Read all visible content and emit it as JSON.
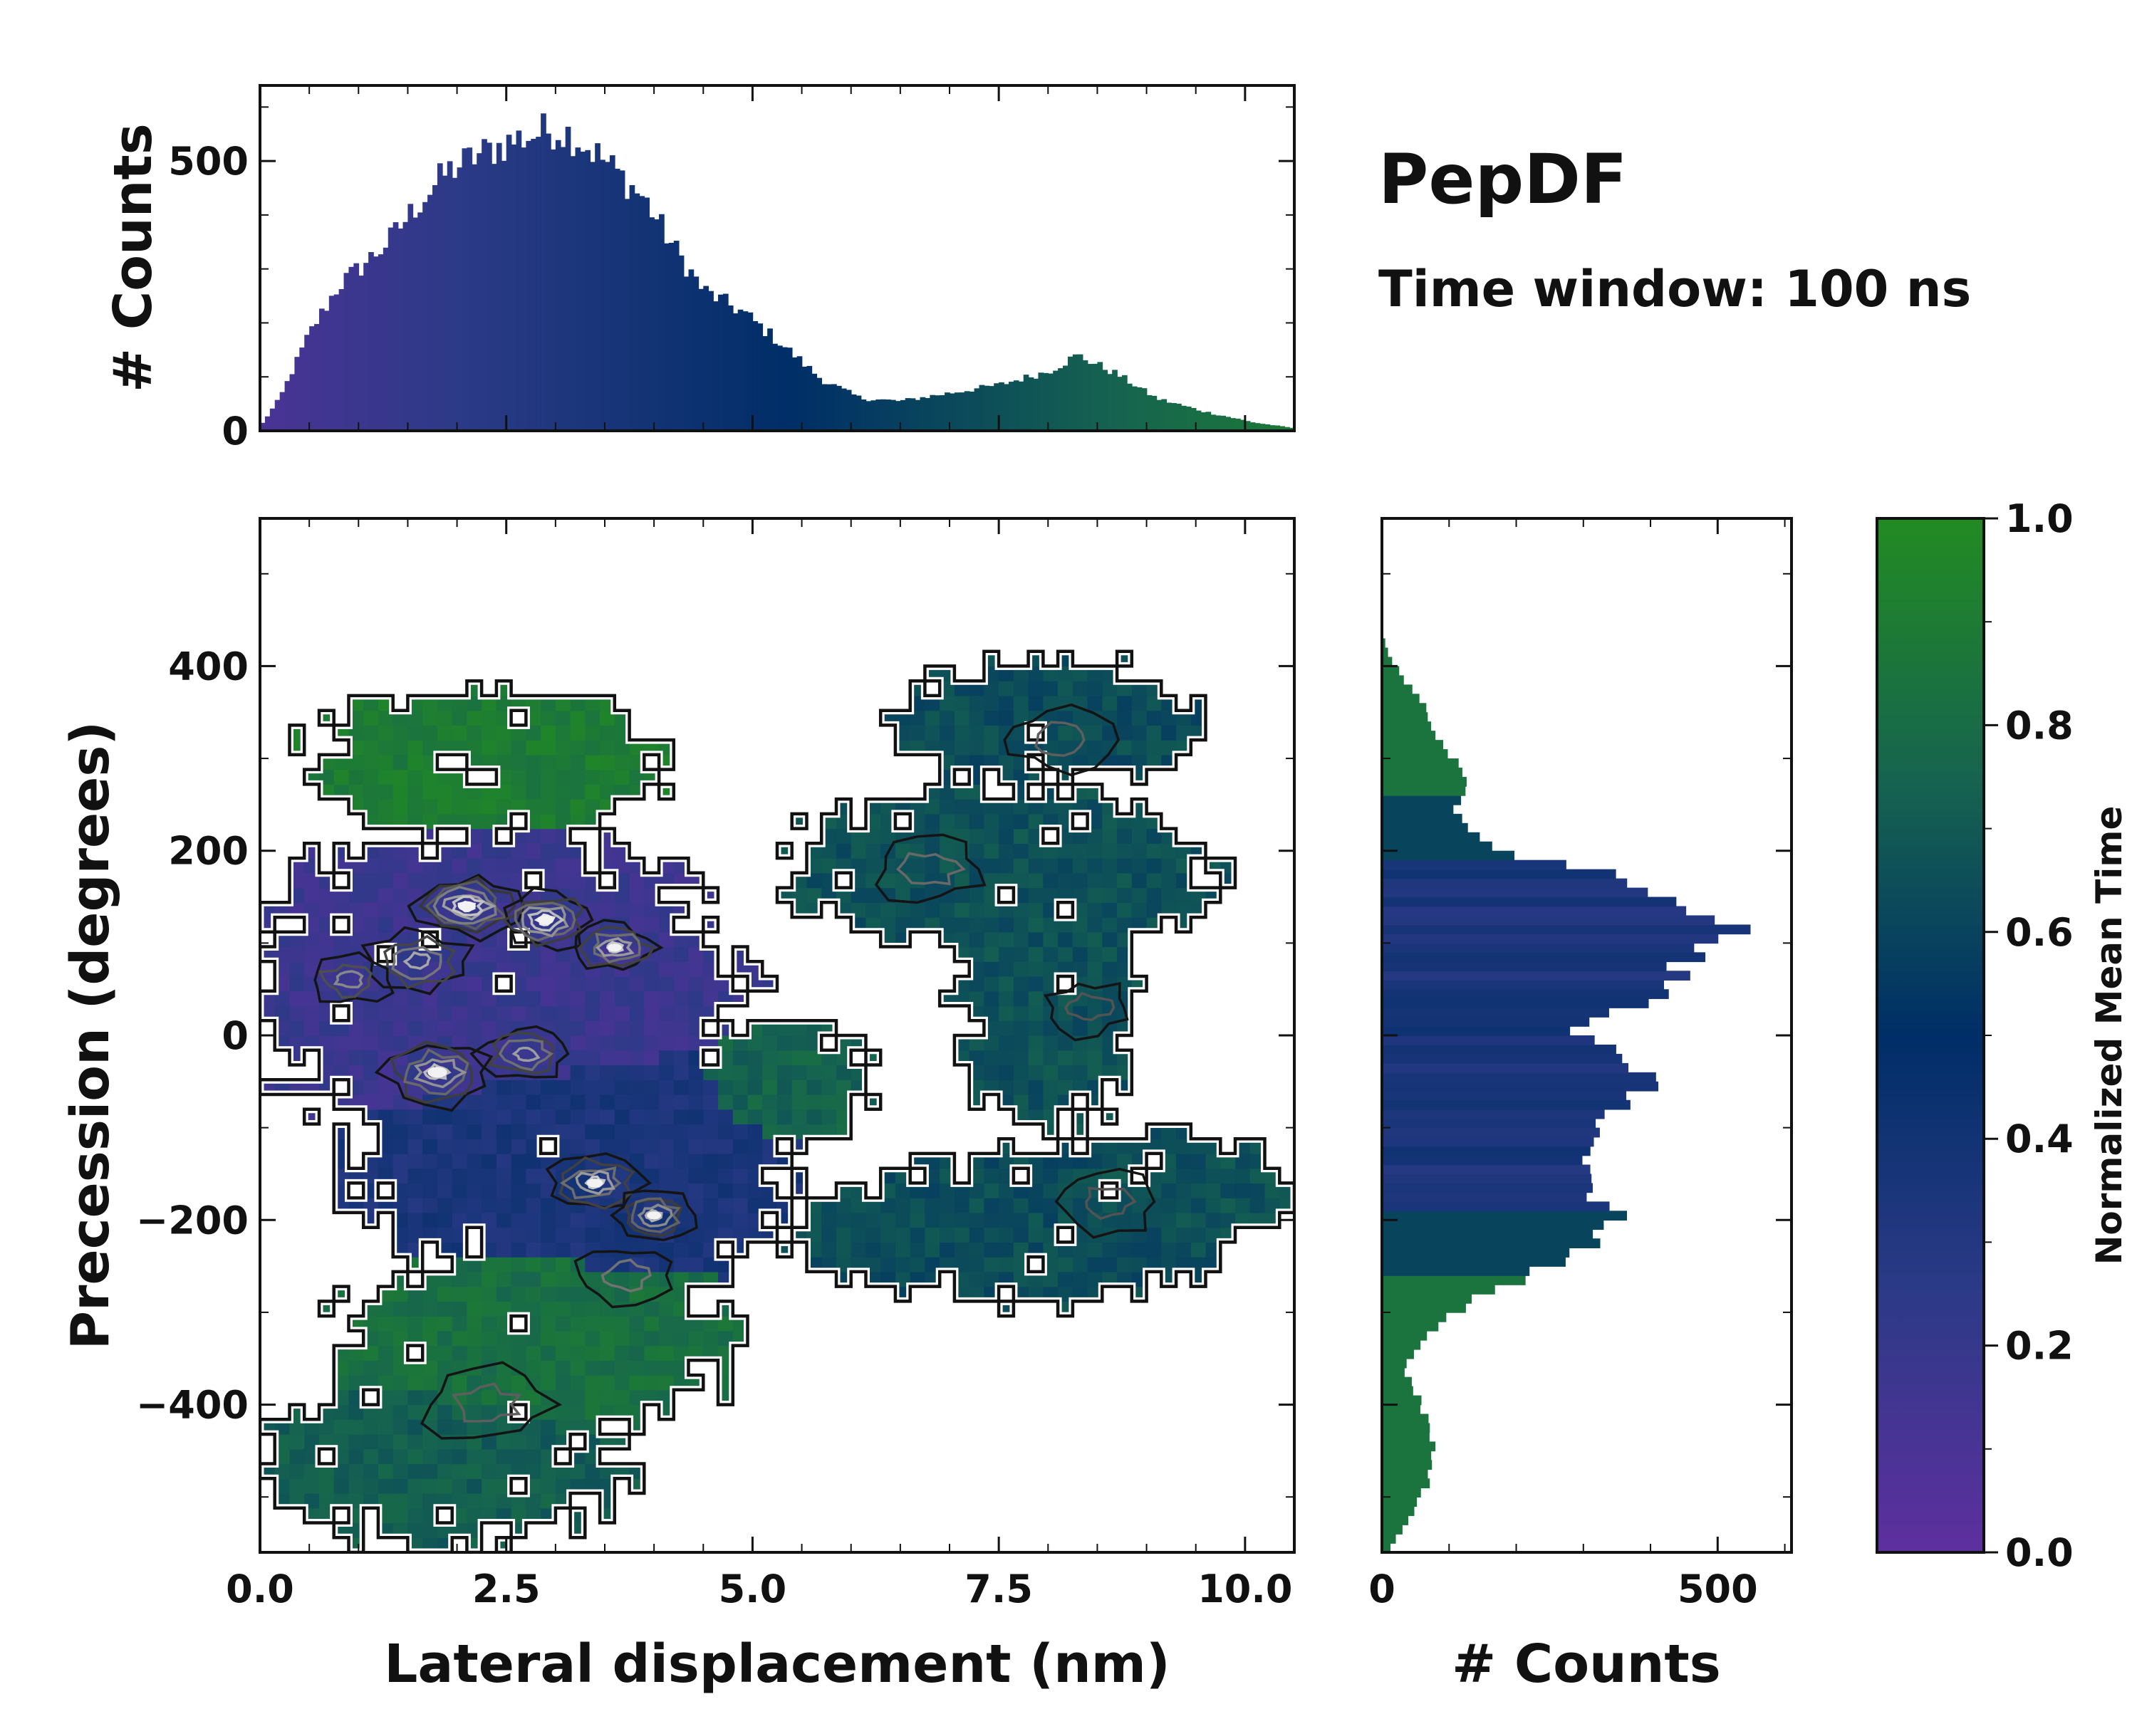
{
  "chart_data": [
    {
      "type": "bar",
      "panel": "top-marginal-histogram",
      "xlabel": "",
      "ylabel": "# Counts",
      "xlim": [
        0,
        10.5
      ],
      "ylim": [
        0,
        640
      ],
      "yticks": [
        0,
        500
      ],
      "bin_width": 0.05,
      "profile": [
        [
          0.0,
          8
        ],
        [
          0.2,
          60
        ],
        [
          0.5,
          180
        ],
        [
          0.8,
          270
        ],
        [
          1.0,
          300
        ],
        [
          1.3,
          350
        ],
        [
          1.6,
          420
        ],
        [
          1.9,
          480
        ],
        [
          2.2,
          510
        ],
        [
          2.6,
          540
        ],
        [
          3.0,
          560
        ],
        [
          3.2,
          545
        ],
        [
          3.5,
          500
        ],
        [
          3.9,
          430
        ],
        [
          4.2,
          340
        ],
        [
          4.5,
          260
        ],
        [
          4.9,
          220
        ],
        [
          5.3,
          160
        ],
        [
          5.7,
          95
        ],
        [
          6.1,
          60
        ],
        [
          6.5,
          55
        ],
        [
          7.0,
          70
        ],
        [
          7.5,
          85
        ],
        [
          8.0,
          110
        ],
        [
          8.3,
          140
        ],
        [
          8.7,
          105
        ],
        [
          9.1,
          60
        ],
        [
          9.6,
          35
        ],
        [
          10.1,
          15
        ],
        [
          10.5,
          5
        ]
      ]
    },
    {
      "type": "heatmap",
      "panel": "joint-distribution",
      "xlabel": "Lateral displacement (nm)",
      "ylabel": "Precession (degrees)",
      "xlim": [
        0,
        10.5
      ],
      "ylim": [
        -560,
        560
      ],
      "xticks": [
        0,
        2.5,
        5,
        7.5,
        10
      ],
      "xtick_labels": [
        "0.0",
        "2.5",
        "5.0",
        "7.5",
        "10.0"
      ],
      "yticks": [
        -400,
        -200,
        0,
        200,
        400
      ],
      "ytick_labels": [
        "−400",
        "−200",
        "0",
        "200",
        "400"
      ],
      "color_variable": "Normalized Mean Time",
      "regions": [
        {
          "cx": 2.4,
          "cy": 50,
          "rx": 2.5,
          "ry": 170,
          "t": 0.18
        },
        {
          "cx": 3.2,
          "cy": -130,
          "rx": 2.3,
          "ry": 150,
          "t": 0.35
        },
        {
          "cx": 2.3,
          "cy": 300,
          "rx": 1.8,
          "ry": 80,
          "t": 0.9
        },
        {
          "cx": 5.3,
          "cy": -50,
          "rx": 0.9,
          "ry": 70,
          "t": 0.75
        },
        {
          "cx": 2.8,
          "cy": -330,
          "rx": 2.0,
          "ry": 110,
          "t": 0.82
        },
        {
          "cx": 1.9,
          "cy": -460,
          "rx": 1.9,
          "ry": 90,
          "t": 0.72
        },
        {
          "cx": 7.5,
          "cy": 180,
          "rx": 2.2,
          "ry": 90,
          "t": 0.66
        },
        {
          "cx": 8.0,
          "cy": 340,
          "rx": 1.6,
          "ry": 70,
          "t": 0.64
        },
        {
          "cx": 8.0,
          "cy": 40,
          "rx": 0.9,
          "ry": 150,
          "t": 0.66
        },
        {
          "cx": 7.7,
          "cy": -210,
          "rx": 2.3,
          "ry": 80,
          "t": 0.64
        },
        {
          "cx": 9.3,
          "cy": -170,
          "rx": 1.2,
          "ry": 60,
          "t": 0.66
        }
      ],
      "density_peaks": [
        {
          "x": 2.1,
          "y": 140,
          "s": 0.5,
          "w": 1.0
        },
        {
          "x": 2.9,
          "y": 125,
          "s": 0.45,
          "w": 0.9
        },
        {
          "x": 3.6,
          "y": 95,
          "s": 0.4,
          "w": 0.75
        },
        {
          "x": 1.6,
          "y": 80,
          "s": 0.5,
          "w": 0.6
        },
        {
          "x": 0.9,
          "y": 60,
          "s": 0.4,
          "w": 0.45
        },
        {
          "x": 1.8,
          "y": -40,
          "s": 0.55,
          "w": 0.7
        },
        {
          "x": 2.7,
          "y": -20,
          "s": 0.45,
          "w": 0.55
        },
        {
          "x": 3.4,
          "y": -160,
          "s": 0.45,
          "w": 0.75
        },
        {
          "x": 4.0,
          "y": -195,
          "s": 0.4,
          "w": 0.65
        },
        {
          "x": 3.7,
          "y": -260,
          "s": 0.45,
          "w": 0.35
        },
        {
          "x": 2.3,
          "y": -400,
          "s": 0.6,
          "w": 0.25
        },
        {
          "x": 6.8,
          "y": 180,
          "s": 0.55,
          "w": 0.3
        },
        {
          "x": 8.1,
          "y": 320,
          "s": 0.5,
          "w": 0.25
        },
        {
          "x": 8.4,
          "y": 30,
          "s": 0.45,
          "w": 0.2
        },
        {
          "x": 8.6,
          "y": -180,
          "s": 0.5,
          "w": 0.2
        }
      ]
    },
    {
      "type": "bar",
      "orientation": "horizontal",
      "panel": "right-marginal-histogram",
      "xlabel": "# Counts",
      "ylabel": "",
      "xlim": [
        0,
        610
      ],
      "ylim": [
        -560,
        560
      ],
      "xticks": [
        0,
        500
      ],
      "bin_width": 10,
      "profile": [
        [
          -560,
          8
        ],
        [
          -520,
          45
        ],
        [
          -480,
          70
        ],
        [
          -440,
          75
        ],
        [
          -400,
          60
        ],
        [
          -360,
          30
        ],
        [
          -320,
          70
        ],
        [
          -280,
          150
        ],
        [
          -240,
          280
        ],
        [
          -200,
          350
        ],
        [
          -160,
          310
        ],
        [
          -120,
          290
        ],
        [
          -80,
          360
        ],
        [
          -40,
          410
        ],
        [
          0,
          290
        ],
        [
          40,
          390
        ],
        [
          80,
          450
        ],
        [
          110,
          530
        ],
        [
          140,
          420
        ],
        [
          170,
          360
        ],
        [
          200,
          160
        ],
        [
          240,
          110
        ],
        [
          280,
          130
        ],
        [
          320,
          90
        ],
        [
          360,
          60
        ],
        [
          400,
          20
        ],
        [
          420,
          5
        ]
      ]
    },
    {
      "type": "colorbar",
      "panel": "colorbar",
      "label": "Normalized Mean Time",
      "range": [
        0.0,
        1.0
      ],
      "ticks": [
        0.0,
        0.2,
        0.4,
        0.6,
        0.8,
        1.0
      ],
      "tick_labels": [
        "0.0",
        "0.2",
        "0.4",
        "0.6",
        "0.8",
        "1.0"
      ],
      "colormap": [
        "#5e2f9f",
        "#2c3a87",
        "#002e67",
        "#16644f",
        "#228b22"
      ]
    }
  ],
  "annotation": {
    "title": "PepDF",
    "subtitle": "Time window: 100 ns"
  },
  "colors": {
    "contour_dark": "#1a1a1a",
    "contour_light": "#dcdcdc",
    "axis": "#111111"
  }
}
